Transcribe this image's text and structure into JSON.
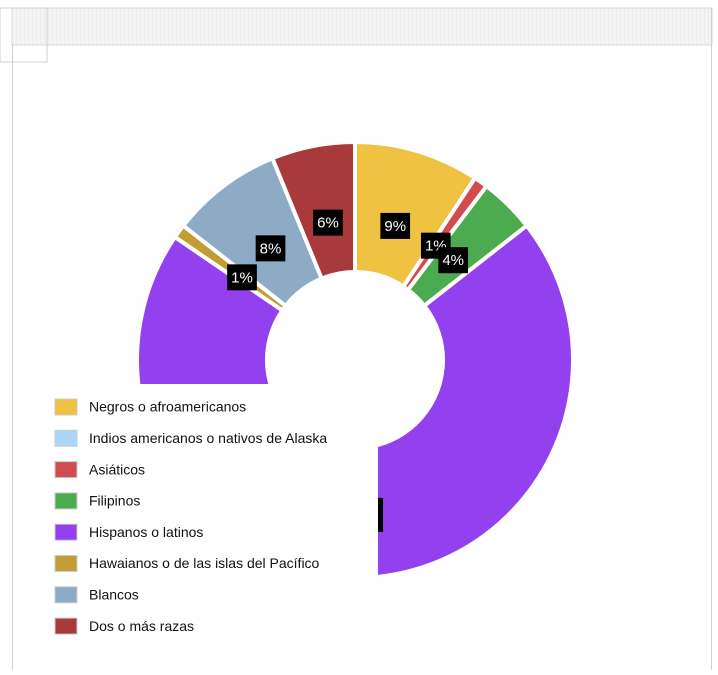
{
  "chart_data": {
    "type": "donut",
    "categories": [
      "Negros o afroamericanos",
      "Indios americanos o nativos de Alaska",
      "Asiáticos",
      "Filipinos",
      "Hispanos o latinos",
      "Hawaianos o de las islas del Pacífico",
      "Blancos",
      "Dos o más razas"
    ],
    "values": [
      9,
      0,
      1,
      4,
      68,
      1,
      8,
      6
    ],
    "value_labels": [
      "9%",
      null,
      "1%",
      "4%",
      "68%",
      "1%",
      "8%",
      "6%"
    ],
    "colors": [
      "#efc241",
      "#acd6f6",
      "#d24b4f",
      "#4cab4f",
      "#9341ee",
      "#c29d35",
      "#8eabc5",
      "#a83a3c"
    ],
    "legend": "lower left"
  }
}
